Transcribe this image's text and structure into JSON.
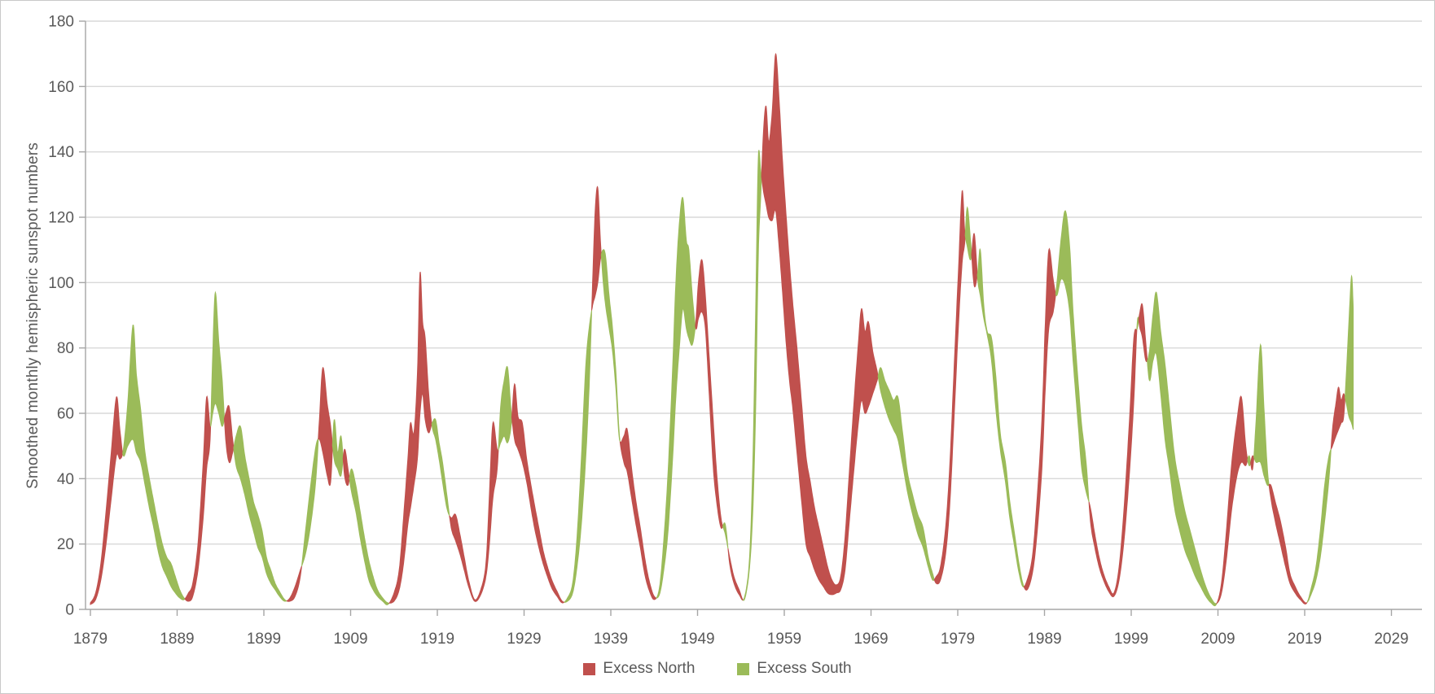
{
  "chart_data": {
    "type": "area",
    "title": "",
    "xlabel": "",
    "ylabel": "Smoothed monthly hemispheric sunspot numbers",
    "xlim": [
      1879,
      2029
    ],
    "ylim": [
      0,
      180
    ],
    "x_ticks": [
      1879,
      1889,
      1899,
      1909,
      1919,
      1929,
      1939,
      1949,
      1959,
      1969,
      1979,
      1989,
      1999,
      2009,
      2019,
      2029
    ],
    "y_ticks": [
      0,
      20,
      40,
      60,
      80,
      100,
      120,
      140,
      160,
      180
    ],
    "grid": "horizontal",
    "legend_position": "bottom-center",
    "colors": {
      "excess_north": "#C0504D",
      "excess_south": "#9BBB59",
      "gridline": "#D9D9D9",
      "axis": "#A6A6A6",
      "labels": "#595959"
    },
    "series": [
      {
        "name": "Excess North",
        "meaning": "north hemisphere sunspot number exceeds south",
        "color": "#C0504D"
      },
      {
        "name": "Excess South",
        "meaning": "south hemisphere sunspot number exceeds north",
        "color": "#9BBB59"
      }
    ],
    "samples_format": [
      "year",
      "north_value",
      "south_value"
    ],
    "samples": [
      [
        1879.0,
        2,
        1.5
      ],
      [
        1879.6,
        5,
        3
      ],
      [
        1880.2,
        14,
        9
      ],
      [
        1880.8,
        30,
        20
      ],
      [
        1881.4,
        48,
        34
      ],
      [
        1882.0,
        65,
        47
      ],
      [
        1882.4,
        55,
        46
      ],
      [
        1882.8,
        47,
        49
      ],
      [
        1883.3,
        50,
        63
      ],
      [
        1883.9,
        52,
        87
      ],
      [
        1884.3,
        48,
        72
      ],
      [
        1884.8,
        45,
        61
      ],
      [
        1885.3,
        38,
        48
      ],
      [
        1885.8,
        31,
        40
      ],
      [
        1886.3,
        25,
        33
      ],
      [
        1886.8,
        18,
        26
      ],
      [
        1887.3,
        13,
        20
      ],
      [
        1887.8,
        10,
        16
      ],
      [
        1888.3,
        7,
        14
      ],
      [
        1888.8,
        5,
        10
      ],
      [
        1889.3,
        3.5,
        6
      ],
      [
        1889.8,
        3,
        3.5
      ],
      [
        1890.3,
        5,
        2.5
      ],
      [
        1890.8,
        8,
        4
      ],
      [
        1891.4,
        20,
        12
      ],
      [
        1892.0,
        45,
        28
      ],
      [
        1892.4,
        65,
        43
      ],
      [
        1892.8,
        56,
        52
      ],
      [
        1893.1,
        60,
        78
      ],
      [
        1893.4,
        63,
        97
      ],
      [
        1893.8,
        60,
        82
      ],
      [
        1894.2,
        56,
        70
      ],
      [
        1894.6,
        60,
        52
      ],
      [
        1895.0,
        62,
        45
      ],
      [
        1895.4,
        52,
        48
      ],
      [
        1895.8,
        44,
        53
      ],
      [
        1896.3,
        40,
        56
      ],
      [
        1896.8,
        35,
        47
      ],
      [
        1897.3,
        29,
        40
      ],
      [
        1897.8,
        24,
        33
      ],
      [
        1898.3,
        19,
        29
      ],
      [
        1898.8,
        16,
        24
      ],
      [
        1899.3,
        11,
        16
      ],
      [
        1899.8,
        8,
        12
      ],
      [
        1900.3,
        6,
        8
      ],
      [
        1900.8,
        4,
        5.5
      ],
      [
        1901.4,
        2.5,
        3
      ],
      [
        1902.0,
        3.5,
        2.5
      ],
      [
        1902.6,
        7,
        4
      ],
      [
        1903.2,
        12,
        10
      ],
      [
        1903.8,
        17,
        24
      ],
      [
        1904.4,
        26,
        38
      ],
      [
        1905.0,
        40,
        50
      ],
      [
        1905.4,
        58,
        52
      ],
      [
        1905.8,
        74,
        48
      ],
      [
        1906.3,
        63,
        41
      ],
      [
        1906.7,
        56,
        39
      ],
      [
        1907.1,
        46,
        58
      ],
      [
        1907.5,
        43,
        48
      ],
      [
        1907.9,
        41,
        53
      ],
      [
        1908.3,
        49,
        41
      ],
      [
        1908.7,
        43,
        38
      ],
      [
        1909.1,
        36,
        43
      ],
      [
        1909.6,
        30,
        38
      ],
      [
        1910.1,
        22,
        30
      ],
      [
        1910.6,
        15,
        22
      ],
      [
        1911.1,
        9,
        15
      ],
      [
        1911.6,
        6,
        10
      ],
      [
        1912.1,
        4,
        6
      ],
      [
        1912.7,
        2.5,
        3.5
      ],
      [
        1913.3,
        1.5,
        2
      ],
      [
        1914.0,
        5,
        2.5
      ],
      [
        1914.6,
        12,
        6
      ],
      [
        1915.1,
        28,
        14
      ],
      [
        1915.6,
        46,
        26
      ],
      [
        1915.9,
        57,
        31
      ],
      [
        1916.3,
        54,
        38
      ],
      [
        1916.7,
        72,
        46
      ],
      [
        1917.0,
        103,
        60
      ],
      [
        1917.3,
        88,
        66
      ],
      [
        1917.6,
        83,
        58
      ],
      [
        1918.0,
        66,
        54
      ],
      [
        1918.4,
        56,
        57
      ],
      [
        1918.8,
        52,
        58
      ],
      [
        1919.2,
        46,
        51
      ],
      [
        1919.6,
        39,
        45
      ],
      [
        1920.1,
        31,
        35
      ],
      [
        1920.6,
        28,
        25
      ],
      [
        1921.1,
        29,
        21
      ],
      [
        1921.6,
        23,
        17
      ],
      [
        1922.1,
        16,
        12
      ],
      [
        1922.6,
        9,
        7
      ],
      [
        1923.3,
        3,
        2.5
      ],
      [
        1924.0,
        6,
        4.5
      ],
      [
        1924.6,
        14,
        10
      ],
      [
        1925.0,
        35,
        20
      ],
      [
        1925.4,
        57,
        34
      ],
      [
        1925.9,
        49,
        43
      ],
      [
        1926.3,
        51,
        62
      ],
      [
        1926.7,
        53,
        70
      ],
      [
        1927.1,
        51,
        74
      ],
      [
        1927.5,
        56,
        61
      ],
      [
        1927.9,
        69,
        52
      ],
      [
        1928.3,
        59,
        49
      ],
      [
        1928.8,
        57,
        45
      ],
      [
        1929.3,
        46,
        39
      ],
      [
        1929.8,
        38,
        31
      ],
      [
        1930.2,
        32,
        25
      ],
      [
        1930.7,
        25,
        19
      ],
      [
        1931.2,
        18,
        14
      ],
      [
        1931.7,
        13,
        10
      ],
      [
        1932.2,
        9,
        6.5
      ],
      [
        1932.8,
        5.5,
        4
      ],
      [
        1933.4,
        2.5,
        2
      ],
      [
        1934.0,
        2.5,
        3.5
      ],
      [
        1934.6,
        5,
        8
      ],
      [
        1935.1,
        13,
        22
      ],
      [
        1935.6,
        26,
        46
      ],
      [
        1936.1,
        46,
        74
      ],
      [
        1936.5,
        68,
        86
      ],
      [
        1936.9,
        100,
        93
      ],
      [
        1937.2,
        122,
        96
      ],
      [
        1937.5,
        129,
        100
      ],
      [
        1937.8,
        113,
        107
      ],
      [
        1938.1,
        101,
        110
      ],
      [
        1938.4,
        93,
        108
      ],
      [
        1938.8,
        86,
        96
      ],
      [
        1939.2,
        79,
        86
      ],
      [
        1939.6,
        67,
        72
      ],
      [
        1940.0,
        52,
        53
      ],
      [
        1940.5,
        53,
        45
      ],
      [
        1940.9,
        55,
        42
      ],
      [
        1941.4,
        43,
        34
      ],
      [
        1941.9,
        33,
        26
      ],
      [
        1942.4,
        25,
        19
      ],
      [
        1942.9,
        16,
        11
      ],
      [
        1943.4,
        9,
        6
      ],
      [
        1944.0,
        4,
        3
      ],
      [
        1944.6,
        4.5,
        6.5
      ],
      [
        1945.1,
        12,
        21
      ],
      [
        1945.6,
        24,
        42
      ],
      [
        1946.1,
        45,
        72
      ],
      [
        1946.5,
        65,
        100
      ],
      [
        1946.9,
        80,
        118
      ],
      [
        1947.3,
        92,
        126
      ],
      [
        1947.7,
        86,
        113
      ],
      [
        1948.0,
        83,
        110
      ],
      [
        1948.4,
        81,
        96
      ],
      [
        1948.8,
        88,
        86
      ],
      [
        1949.1,
        100,
        89
      ],
      [
        1949.5,
        107,
        91
      ],
      [
        1949.9,
        96,
        86
      ],
      [
        1950.3,
        79,
        68
      ],
      [
        1950.8,
        58,
        44
      ],
      [
        1951.2,
        42,
        33
      ],
      [
        1951.7,
        28,
        25
      ],
      [
        1952.2,
        23,
        26
      ],
      [
        1952.7,
        16,
        14
      ],
      [
        1953.2,
        10,
        8
      ],
      [
        1953.8,
        6,
        4.5
      ],
      [
        1954.4,
        3,
        3.6
      ],
      [
        1955.0,
        13,
        16
      ],
      [
        1955.4,
        32,
        48
      ],
      [
        1955.7,
        62,
        92
      ],
      [
        1956.0,
        108,
        138
      ],
      [
        1956.3,
        127,
        134
      ],
      [
        1956.6,
        146,
        128
      ],
      [
        1956.9,
        154,
        124
      ],
      [
        1957.2,
        143,
        120
      ],
      [
        1957.6,
        152,
        119
      ],
      [
        1958.0,
        170,
        122
      ],
      [
        1958.4,
        156,
        111
      ],
      [
        1958.8,
        137,
        97
      ],
      [
        1959.2,
        121,
        82
      ],
      [
        1959.6,
        106,
        70
      ],
      [
        1960.0,
        93,
        61
      ],
      [
        1960.5,
        79,
        47
      ],
      [
        1961.0,
        63,
        33
      ],
      [
        1961.5,
        47,
        20
      ],
      [
        1962.0,
        39,
        16
      ],
      [
        1962.5,
        31,
        12
      ],
      [
        1963.0,
        25,
        9
      ],
      [
        1963.5,
        19,
        7
      ],
      [
        1964.0,
        13,
        5
      ],
      [
        1964.5,
        9,
        4.5
      ],
      [
        1965.0,
        7.5,
        5
      ],
      [
        1965.5,
        10,
        6
      ],
      [
        1966.0,
        22,
        12
      ],
      [
        1966.5,
        42,
        27
      ],
      [
        1967.0,
        62,
        42
      ],
      [
        1967.5,
        80,
        56
      ],
      [
        1967.9,
        92,
        64
      ],
      [
        1968.3,
        85,
        60
      ],
      [
        1968.7,
        88,
        62
      ],
      [
        1969.2,
        79,
        66
      ],
      [
        1969.7,
        73,
        70
      ],
      [
        1970.1,
        67,
        74
      ],
      [
        1970.6,
        62,
        70
      ],
      [
        1971.1,
        58,
        67
      ],
      [
        1971.6,
        55,
        64
      ],
      [
        1972.1,
        52,
        65
      ],
      [
        1972.6,
        45,
        55
      ],
      [
        1973.2,
        36,
        42
      ],
      [
        1973.8,
        29,
        35
      ],
      [
        1974.4,
        23,
        29
      ],
      [
        1975.0,
        19,
        25
      ],
      [
        1975.6,
        13,
        16
      ],
      [
        1976.1,
        9,
        11
      ],
      [
        1976.5,
        10,
        8
      ],
      [
        1977.0,
        13,
        9
      ],
      [
        1977.6,
        25,
        17
      ],
      [
        1978.1,
        45,
        33
      ],
      [
        1978.6,
        75,
        60
      ],
      [
        1979.1,
        105,
        88
      ],
      [
        1979.5,
        128,
        106
      ],
      [
        1979.8,
        116,
        112
      ],
      [
        1980.1,
        111,
        123
      ],
      [
        1980.5,
        107,
        112
      ],
      [
        1980.9,
        115,
        99
      ],
      [
        1981.3,
        101,
        103
      ],
      [
        1981.6,
        96,
        110
      ],
      [
        1982.0,
        89,
        93
      ],
      [
        1982.4,
        84,
        85
      ],
      [
        1982.9,
        76,
        83
      ],
      [
        1983.4,
        61,
        71
      ],
      [
        1983.9,
        49,
        54
      ],
      [
        1984.5,
        39,
        45
      ],
      [
        1985.0,
        28,
        33
      ],
      [
        1985.5,
        20,
        24
      ],
      [
        1986.0,
        12,
        15
      ],
      [
        1986.5,
        7,
        8
      ],
      [
        1987.0,
        9,
        6
      ],
      [
        1987.6,
        16,
        11
      ],
      [
        1988.1,
        32,
        22
      ],
      [
        1988.7,
        58,
        43
      ],
      [
        1989.1,
        88,
        68
      ],
      [
        1989.5,
        110,
        86
      ],
      [
        1990.0,
        101,
        91
      ],
      [
        1990.4,
        96,
        99
      ],
      [
        1990.9,
        101,
        113
      ],
      [
        1991.4,
        99,
        122
      ],
      [
        1991.9,
        91,
        111
      ],
      [
        1992.3,
        76,
        91
      ],
      [
        1992.9,
        56,
        69
      ],
      [
        1993.3,
        43,
        56
      ],
      [
        1993.8,
        36,
        45
      ],
      [
        1994.3,
        31,
        27
      ],
      [
        1994.8,
        23,
        19
      ],
      [
        1995.3,
        16,
        13
      ],
      [
        1995.8,
        11,
        9
      ],
      [
        1996.4,
        7,
        5.5
      ],
      [
        1997.0,
        5,
        4
      ],
      [
        1997.6,
        13,
        9
      ],
      [
        1998.2,
        32,
        22
      ],
      [
        1998.8,
        58,
        42
      ],
      [
        1999.3,
        83,
        64
      ],
      [
        1999.7,
        86,
        88
      ],
      [
        2000.0,
        91,
        86
      ],
      [
        2000.3,
        93,
        83
      ],
      [
        2000.7,
        81,
        76
      ],
      [
        2001.1,
        70,
        79
      ],
      [
        2001.5,
        76,
        90
      ],
      [
        2001.9,
        78,
        97
      ],
      [
        2002.4,
        66,
        85
      ],
      [
        2002.9,
        52,
        75
      ],
      [
        2003.4,
        43,
        62
      ],
      [
        2004.0,
        31,
        47
      ],
      [
        2004.6,
        24,
        38
      ],
      [
        2005.2,
        18,
        30
      ],
      [
        2005.8,
        14,
        24
      ],
      [
        2006.4,
        10,
        18
      ],
      [
        2007.0,
        7,
        12
      ],
      [
        2007.6,
        4,
        7
      ],
      [
        2008.2,
        2,
        3.5
      ],
      [
        2008.8,
        1.5,
        1.8
      ],
      [
        2009.4,
        8,
        5
      ],
      [
        2010.0,
        25,
        16
      ],
      [
        2010.6,
        45,
        31
      ],
      [
        2011.2,
        58,
        41
      ],
      [
        2011.7,
        65,
        45
      ],
      [
        2012.2,
        50,
        44
      ],
      [
        2012.6,
        44,
        47
      ],
      [
        2013.0,
        47,
        43
      ],
      [
        2013.4,
        45,
        58
      ],
      [
        2013.9,
        45,
        81
      ],
      [
        2014.3,
        41,
        62
      ],
      [
        2014.7,
        38,
        43
      ],
      [
        2015.1,
        38,
        34
      ],
      [
        2015.6,
        33,
        27
      ],
      [
        2016.2,
        27,
        20
      ],
      [
        2016.8,
        19,
        13
      ],
      [
        2017.3,
        11,
        8
      ],
      [
        2017.9,
        7,
        5
      ],
      [
        2018.5,
        4,
        3
      ],
      [
        2019.2,
        2,
        1.8
      ],
      [
        2019.8,
        5,
        7
      ],
      [
        2020.3,
        9,
        13
      ],
      [
        2020.8,
        16,
        24
      ],
      [
        2021.3,
        27,
        38
      ],
      [
        2021.8,
        40,
        47
      ],
      [
        2022.2,
        55,
        50
      ],
      [
        2022.6,
        63,
        53
      ],
      [
        2022.9,
        68,
        55
      ],
      [
        2023.2,
        64,
        57
      ],
      [
        2023.5,
        66,
        59
      ],
      [
        2023.8,
        63,
        72
      ],
      [
        2024.1,
        59,
        88
      ],
      [
        2024.4,
        57,
        102
      ],
      [
        2024.6,
        55,
        92
      ]
    ]
  },
  "legend": {
    "north_label": "Excess North",
    "south_label": "Excess South"
  }
}
